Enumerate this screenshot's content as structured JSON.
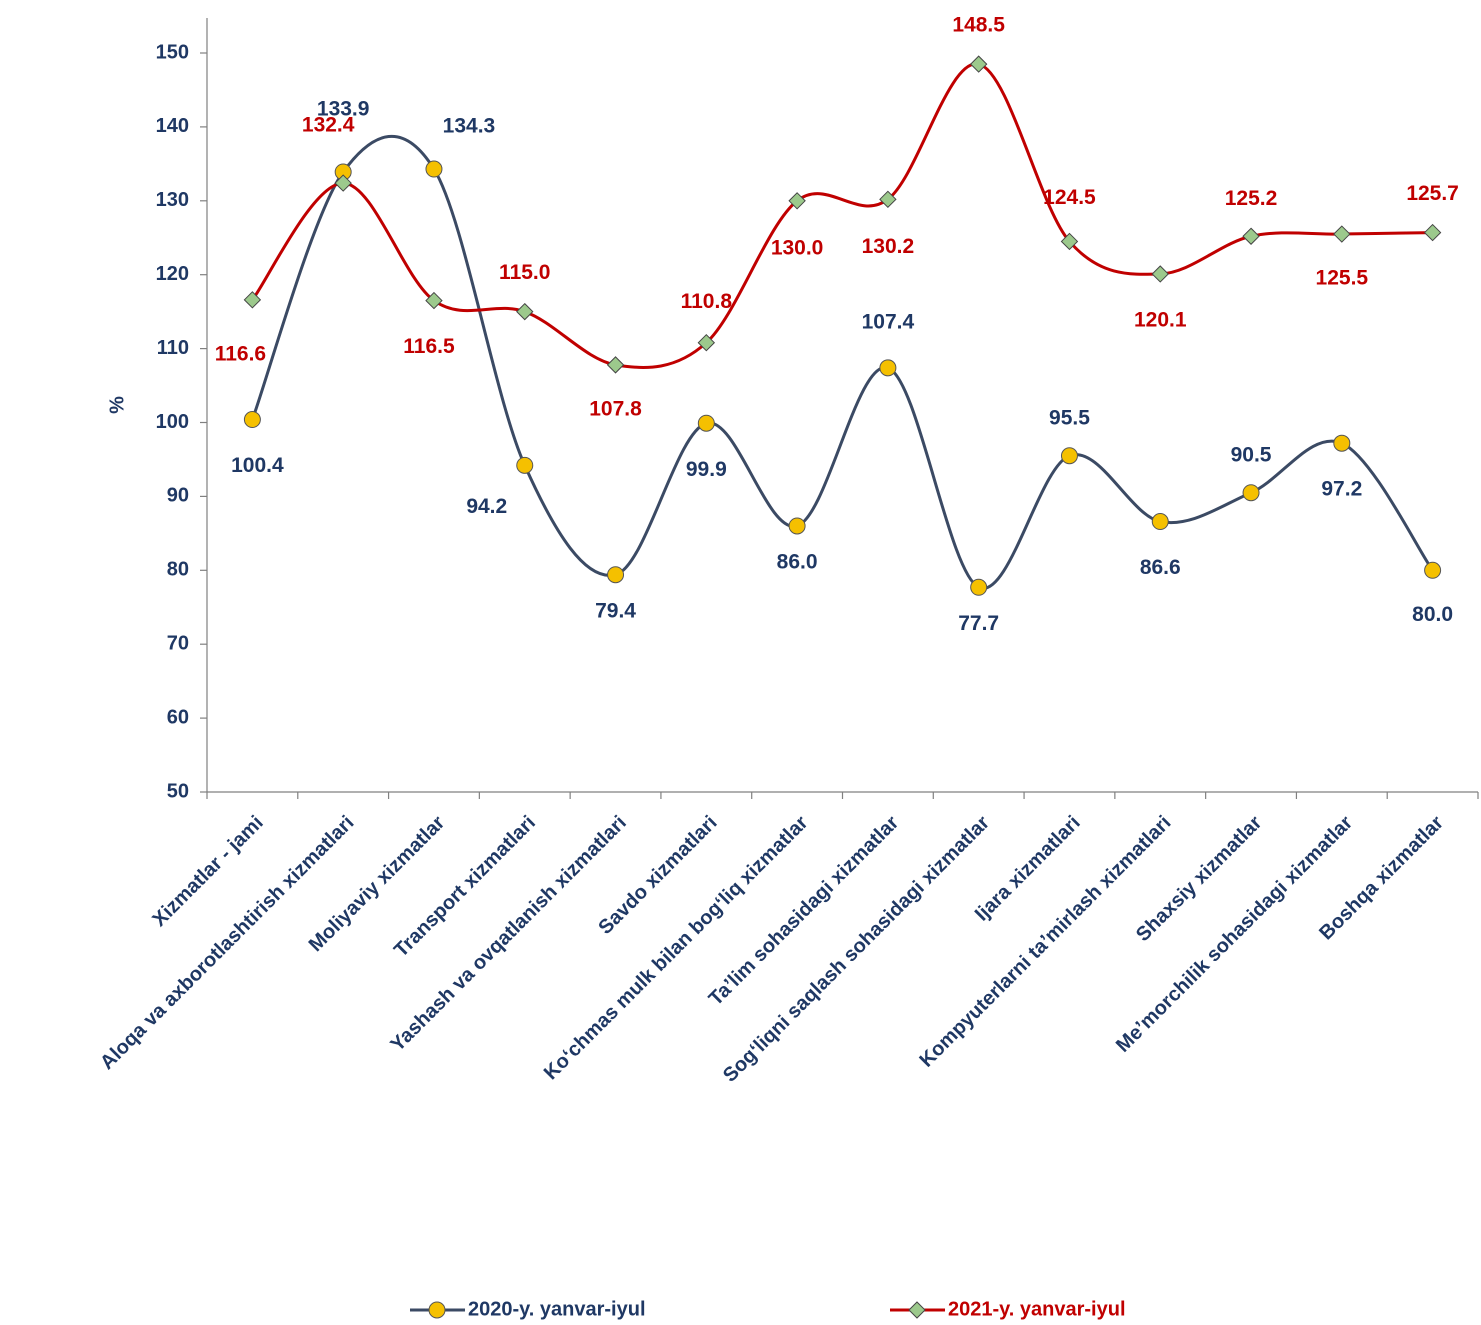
{
  "chart_data": {
    "type": "line",
    "ylabel": "%",
    "categories": [
      "Xizmatlar - jami",
      "Aloqa va axborotlashtirish xizmatlari",
      "Moliyaviy xizmatlar",
      "Transport xizmatlari",
      "Yashash va ovqatlanish xizmatlari",
      "Savdo xizmatlari",
      "Ko‘chmas mulk bilan bog‘liq xizmatlar",
      "Ta’lim sohasidagi xizmatlar",
      "Sog‘liqni saqlash sohasidagi xizmatlar",
      "Ijara xizmatlari",
      "Kompyuterlarni ta’mirlash xizmatlari",
      "Shaxsiy xizmatlar",
      "Me’morchilik sohasidagi xizmatlar",
      "Boshqa xizmatlar"
    ],
    "series": [
      {
        "name": "2020-y. yanvar-iyul",
        "color": "#3b4a64",
        "marker_color": "#f5c000",
        "label_color": "#1f3864",
        "values": [
          100.4,
          133.9,
          134.3,
          94.2,
          79.4,
          99.9,
          86.0,
          107.4,
          77.7,
          95.5,
          86.6,
          90.5,
          97.2,
          80.0
        ],
        "value_labels": [
          "100.4",
          "133.9",
          "134.3",
          "94.2",
          "79.4",
          "99.9",
          "86.0",
          "107.4",
          "77.7",
          "95.5",
          "86.6",
          "90.5",
          "97.2",
          "80.0"
        ]
      },
      {
        "name": "2021-y. yanvar-iyul",
        "color": "#c00000",
        "marker_color": "#9cc98c",
        "label_color": "#c00000",
        "values": [
          116.6,
          132.4,
          116.5,
          115.0,
          107.8,
          110.8,
          130.0,
          130.2,
          148.5,
          124.5,
          120.1,
          125.2,
          125.5,
          125.7
        ],
        "value_labels": [
          "116.6",
          "132.4",
          "116.5",
          "115.0",
          "107.8",
          "110.8",
          "130.0",
          "130.2",
          "148.5",
          "124.5",
          "120.1",
          "125.2",
          "125.5",
          "125.7"
        ]
      }
    ],
    "ylim": [
      50,
      150
    ],
    "yticks": [
      50,
      60,
      70,
      80,
      90,
      100,
      110,
      120,
      130,
      140,
      150
    ],
    "smooth": true
  }
}
